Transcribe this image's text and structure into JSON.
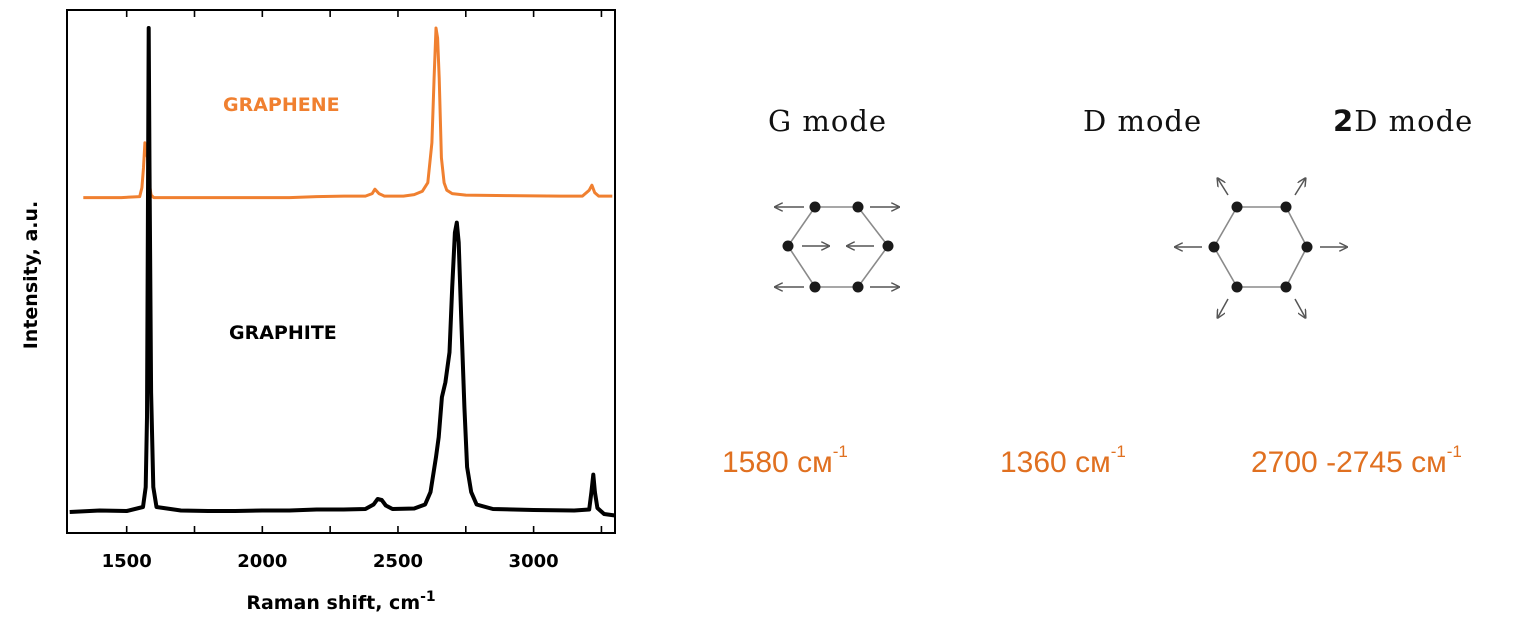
{
  "chart_data": {
    "type": "line",
    "xlabel": "Raman shift, cm",
    "xlabel_sup": "-1",
    "ylabel": "Intensity, a.u.",
    "xlim": [
      1280,
      3300
    ],
    "ylim": [
      0,
      100
    ],
    "x_ticks": [
      "1500",
      "2000",
      "2500",
      "3000"
    ],
    "x_tick_values": [
      1500,
      2000,
      2500,
      3000
    ],
    "grid": false,
    "series": [
      {
        "name": "GRAPHENE",
        "color": "#f08030",
        "points": [
          [
            1340,
            64
          ],
          [
            1480,
            64
          ],
          [
            1548,
            64.2
          ],
          [
            1556,
            66
          ],
          [
            1562,
            70
          ],
          [
            1567,
            75
          ],
          [
            1572,
            73
          ],
          [
            1577,
            72
          ],
          [
            1583,
            67
          ],
          [
            1590,
            64.5
          ],
          [
            1600,
            64
          ],
          [
            1700,
            64
          ],
          [
            1800,
            64
          ],
          [
            1900,
            64
          ],
          [
            2000,
            64
          ],
          [
            2100,
            64
          ],
          [
            2200,
            64.2
          ],
          [
            2300,
            64.3
          ],
          [
            2380,
            64.3
          ],
          [
            2405,
            64.8
          ],
          [
            2415,
            65.7
          ],
          [
            2430,
            64.8
          ],
          [
            2450,
            64.3
          ],
          [
            2520,
            64.3
          ],
          [
            2560,
            64.6
          ],
          [
            2590,
            65.3
          ],
          [
            2610,
            67
          ],
          [
            2625,
            75
          ],
          [
            2633,
            88
          ],
          [
            2640,
            98
          ],
          [
            2646,
            96
          ],
          [
            2652,
            88
          ],
          [
            2660,
            72
          ],
          [
            2670,
            67
          ],
          [
            2680,
            65.5
          ],
          [
            2700,
            64.8
          ],
          [
            2750,
            64.5
          ],
          [
            2900,
            64.4
          ],
          [
            3100,
            64.3
          ],
          [
            3180,
            64.3
          ],
          [
            3205,
            65.5
          ],
          [
            3215,
            66.5
          ],
          [
            3225,
            65
          ],
          [
            3240,
            64.3
          ],
          [
            3290,
            64.3
          ]
        ]
      },
      {
        "name": "GRAPHITE",
        "color": "#000000",
        "points": [
          [
            1290,
            1
          ],
          [
            1400,
            1.3
          ],
          [
            1500,
            1.2
          ],
          [
            1560,
            2
          ],
          [
            1570,
            6
          ],
          [
            1575,
            20
          ],
          [
            1578,
            55
          ],
          [
            1581,
            98
          ],
          [
            1584,
            70
          ],
          [
            1590,
            25
          ],
          [
            1598,
            6
          ],
          [
            1610,
            2
          ],
          [
            1700,
            1.3
          ],
          [
            1800,
            1.2
          ],
          [
            1900,
            1.2
          ],
          [
            2000,
            1.3
          ],
          [
            2100,
            1.3
          ],
          [
            2200,
            1.5
          ],
          [
            2300,
            1.5
          ],
          [
            2380,
            1.6
          ],
          [
            2410,
            2.5
          ],
          [
            2425,
            3.6
          ],
          [
            2440,
            3.4
          ],
          [
            2455,
            2.3
          ],
          [
            2480,
            1.6
          ],
          [
            2560,
            1.7
          ],
          [
            2600,
            2.5
          ],
          [
            2620,
            5
          ],
          [
            2640,
            12
          ],
          [
            2650,
            16
          ],
          [
            2662,
            24
          ],
          [
            2675,
            27
          ],
          [
            2690,
            33
          ],
          [
            2700,
            46
          ],
          [
            2710,
            57
          ],
          [
            2717,
            59
          ],
          [
            2724,
            55
          ],
          [
            2733,
            40
          ],
          [
            2745,
            22
          ],
          [
            2755,
            10
          ],
          [
            2770,
            5
          ],
          [
            2790,
            2.5
          ],
          [
            2850,
            1.6
          ],
          [
            3000,
            1.4
          ],
          [
            3150,
            1.3
          ],
          [
            3205,
            1.5
          ],
          [
            3213,
            5
          ],
          [
            3220,
            8.5
          ],
          [
            3226,
            5
          ],
          [
            3235,
            1.8
          ],
          [
            3260,
            0.6
          ],
          [
            3300,
            0.3
          ]
        ]
      }
    ],
    "annotations": [
      "GRAPHENE",
      "GRAPHITE"
    ]
  },
  "modes": [
    {
      "title_prefix": "",
      "title": "G mode",
      "wavenumber": "1580 см",
      "unit_sup": "-1"
    },
    {
      "title_prefix": "",
      "title": "D mode",
      "wavenumber": "1360 см",
      "unit_sup": "-1"
    },
    {
      "title_prefix": "2",
      "title": "D mode",
      "wavenumber": "2700 -2745 см",
      "unit_sup": "-1"
    }
  ],
  "colors": {
    "graphene": "#f08030",
    "graphite": "#000000",
    "wavenumber_text": "#e07020",
    "atom": "#1a1a1a",
    "bond": "#8a8a8a",
    "arrow": "#555555"
  }
}
